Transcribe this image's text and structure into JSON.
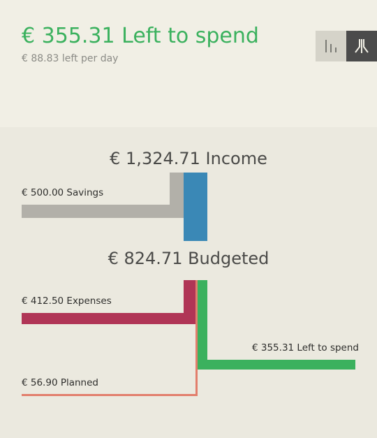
{
  "summary": {
    "headline": "€ 355.31 Left to spend",
    "per_day": "€ 88.83 left per day"
  },
  "view_toggle": {
    "options": [
      {
        "name": "bar-chart-view",
        "icon": "bar-chart-icon",
        "active": false
      },
      {
        "name": "flow-chart-view",
        "icon": "flow-chart-icon",
        "active": true
      }
    ]
  },
  "flow": {
    "income_label": "€ 1,324.71 Income",
    "budgeted_label": "€ 824.71 Budgeted",
    "savings_label": "€ 500.00 Savings",
    "expenses_label": "€ 412.50 Expenses",
    "left_label": "€ 355.31 Left to spend",
    "planned_label": "€ 56.90 Planned",
    "income": 1324.71,
    "budgeted": 824.71,
    "savings": 500.0,
    "expenses": 412.5,
    "left_to_spend": 355.31,
    "planned": 56.9
  },
  "colors": {
    "accent_green": "#3bb15e",
    "income_blue": "#3a88b6",
    "savings_gray": "#b2b0a9",
    "expenses_red": "#b03556",
    "planned_salmon": "#e27e6c",
    "header_bg": "#f1efe5",
    "body_bg": "#ebe9df"
  }
}
